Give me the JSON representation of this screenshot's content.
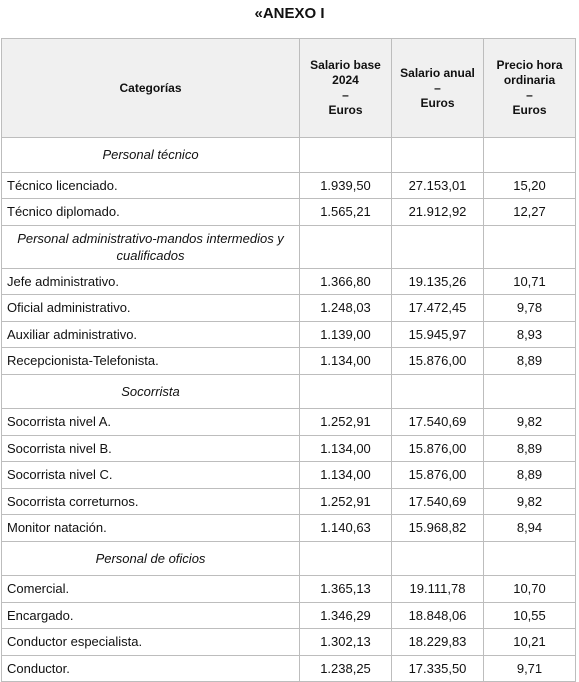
{
  "title": "«ANEXO I",
  "table": {
    "header": [
      [
        "Categorías"
      ],
      [
        "Salario base",
        "2024",
        "–",
        "Euros"
      ],
      [
        "Salario anual",
        "–",
        "Euros"
      ],
      [
        "Precio hora",
        "ordinaria",
        "–",
        "Euros"
      ]
    ],
    "sections": [
      {
        "title": "Personal técnico",
        "rows": [
          [
            "Técnico licenciado.",
            "1.939,50",
            "27.153,01",
            "15,20"
          ],
          [
            "Técnico diplomado.",
            "1.565,21",
            "21.912,92",
            "12,27"
          ]
        ]
      },
      {
        "title": "Personal administrativo-mandos intermedios y cualificados",
        "rows": [
          [
            "Jefe administrativo.",
            "1.366,80",
            "19.135,26",
            "10,71"
          ],
          [
            "Oficial administrativo.",
            "1.248,03",
            "17.472,45",
            "9,78"
          ],
          [
            "Auxiliar administrativo.",
            "1.139,00",
            "15.945,97",
            "8,93"
          ],
          [
            "Recepcionista-Telefonista.",
            "1.134,00",
            "15.876,00",
            "8,89"
          ]
        ]
      },
      {
        "title": "Socorrista",
        "rows": [
          [
            "Socorrista nivel A.",
            "1.252,91",
            "17.540,69",
            "9,82"
          ],
          [
            "Socorrista nivel B.",
            "1.134,00",
            "15.876,00",
            "8,89"
          ],
          [
            "Socorrista nivel C.",
            "1.134,00",
            "15.876,00",
            "8,89"
          ],
          [
            "Socorrista correturnos.",
            "1.252,91",
            "17.540,69",
            "9,82"
          ],
          [
            "Monitor natación.",
            "1.140,63",
            "15.968,82",
            "8,94"
          ]
        ]
      },
      {
        "title": "Personal de oficios",
        "rows": [
          [
            "Comercial.",
            "1.365,13",
            "19.111,78",
            "10,70"
          ],
          [
            "Encargado.",
            "1.346,29",
            "18.848,06",
            "10,55"
          ],
          [
            "Conductor especialista.",
            "1.302,13",
            "18.229,83",
            "10,21"
          ],
          [
            "Conductor.",
            "1.238,25",
            "17.335,50",
            "9,71"
          ]
        ]
      }
    ]
  }
}
